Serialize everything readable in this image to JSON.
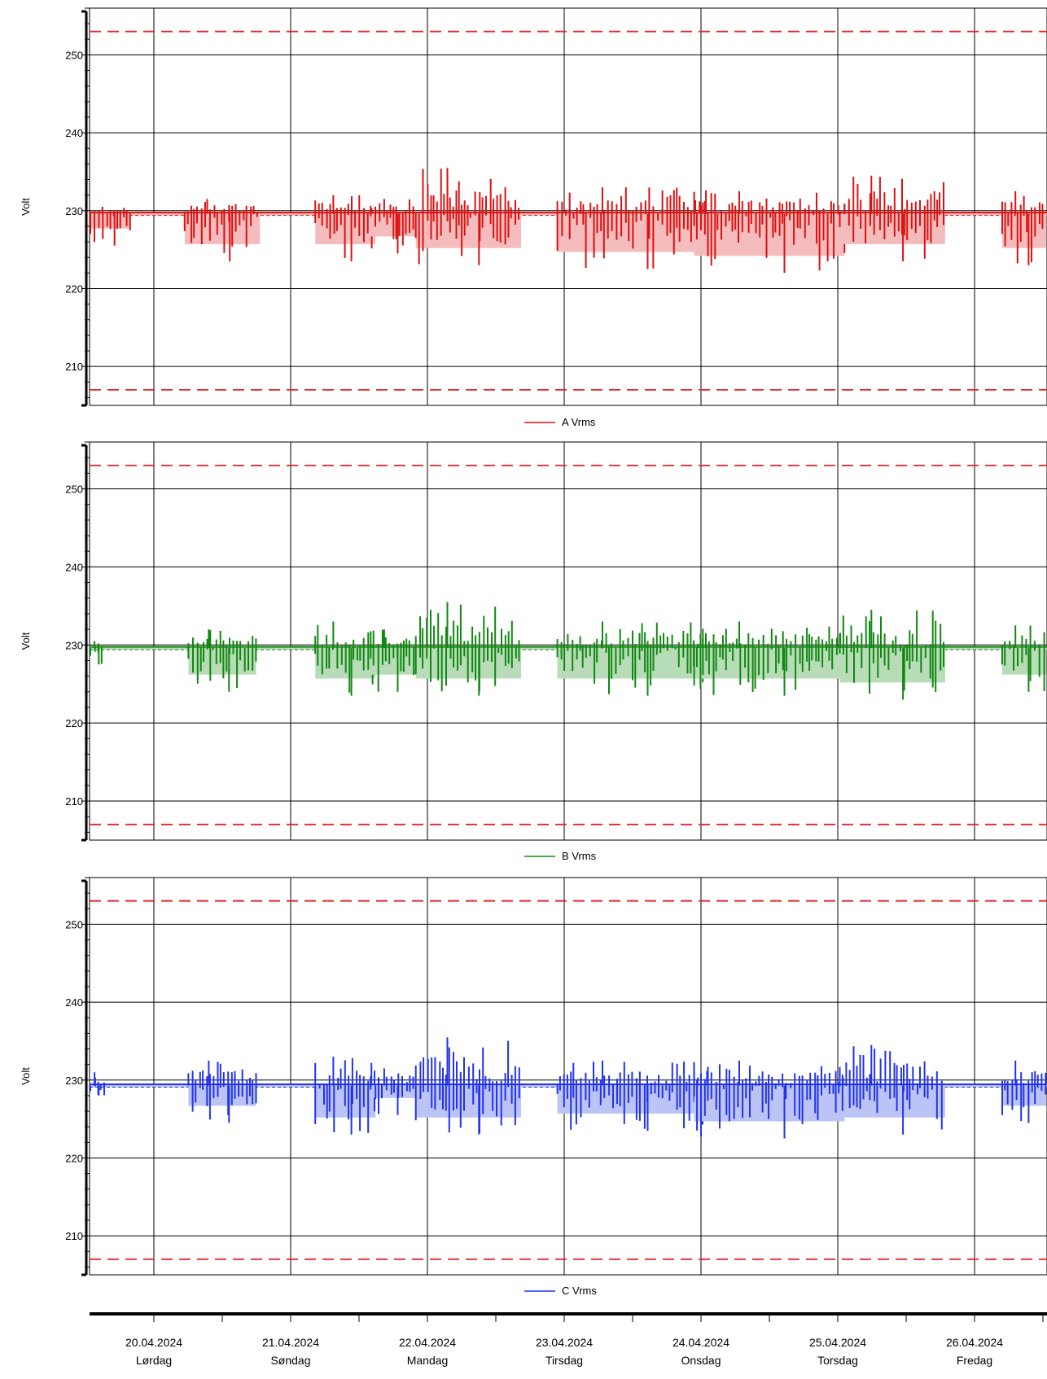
{
  "chart_data": [
    {
      "type": "line",
      "title": "",
      "xlabel": "",
      "ylabel": "Volt",
      "ylim": [
        205,
        256
      ],
      "yticks": [
        210,
        220,
        230,
        240,
        250
      ],
      "grid": true,
      "legend_position": "bottom-center",
      "limits": {
        "upper": 253,
        "lower": 207,
        "color": "#e8222a",
        "style": "dashed"
      },
      "x_days": [
        "20.04.2024",
        "21.04.2024",
        "22.04.2024",
        "23.04.2024",
        "24.04.2024",
        "25.04.2024",
        "26.04.2024"
      ],
      "series": [
        {
          "name": "A Vrms",
          "color": "#dd1111",
          "fill": "#f4bcbc",
          "nominal": 229.6,
          "bursts": [
            {
              "x": 19.5,
              "w": 1.2,
              "max": 230.5,
              "min": 225.5
            },
            {
              "x": 20.5,
              "w": 1.0,
              "max": 231.5,
              "min": 223.5
            },
            {
              "x": 21.4,
              "w": 0.8,
              "max": 232.0,
              "min": 223.5
            },
            {
              "x": 21.75,
              "w": 0.6,
              "max": 231.5,
              "min": 224.5
            },
            {
              "x": 22.3,
              "w": 1.4,
              "max": 235.5,
              "min": 223.0
            },
            {
              "x": 23.5,
              "w": 2.0,
              "max": 233.0,
              "min": 222.5
            },
            {
              "x": 24.5,
              "w": 2.0,
              "max": 232.5,
              "min": 222.0
            },
            {
              "x": 25.4,
              "w": 1.4,
              "max": 234.5,
              "min": 223.5
            },
            {
              "x": 26.45,
              "w": 0.9,
              "max": 232.5,
              "min": 223.0
            }
          ]
        },
        {
          "name": "B Vrms",
          "color": "#118811",
          "fill": "#b8dcb8",
          "nominal": 229.6,
          "bursts": [
            {
              "x": 19.5,
              "w": 0.5,
              "max": 230.5,
              "min": 227.5
            },
            {
              "x": 20.5,
              "w": 0.9,
              "max": 232.0,
              "min": 224.0
            },
            {
              "x": 21.4,
              "w": 0.8,
              "max": 233.0,
              "min": 223.5
            },
            {
              "x": 21.75,
              "w": 0.6,
              "max": 232.0,
              "min": 224.0
            },
            {
              "x": 22.3,
              "w": 1.4,
              "max": 235.5,
              "min": 223.5
            },
            {
              "x": 23.5,
              "w": 2.0,
              "max": 233.0,
              "min": 223.5
            },
            {
              "x": 24.5,
              "w": 2.0,
              "max": 233.0,
              "min": 223.5
            },
            {
              "x": 25.4,
              "w": 1.4,
              "max": 234.5,
              "min": 223.0
            },
            {
              "x": 26.45,
              "w": 0.9,
              "max": 232.5,
              "min": 224.0
            }
          ]
        },
        {
          "name": "C Vrms",
          "color": "#2233ee",
          "fill": "#bbc4f4",
          "nominal": 229.3,
          "bursts": [
            {
              "x": 19.5,
              "w": 0.5,
              "max": 231.0,
              "min": 228.0
            },
            {
              "x": 20.5,
              "w": 0.9,
              "max": 232.5,
              "min": 224.5
            },
            {
              "x": 21.4,
              "w": 0.8,
              "max": 233.0,
              "min": 223.0
            },
            {
              "x": 21.75,
              "w": 0.6,
              "max": 231.5,
              "min": 225.5
            },
            {
              "x": 22.3,
              "w": 1.4,
              "max": 235.5,
              "min": 223.0
            },
            {
              "x": 23.5,
              "w": 2.0,
              "max": 232.5,
              "min": 223.5
            },
            {
              "x": 24.5,
              "w": 2.0,
              "max": 232.5,
              "min": 222.5
            },
            {
              "x": 25.4,
              "w": 1.4,
              "max": 234.5,
              "min": 223.0
            },
            {
              "x": 26.45,
              "w": 0.9,
              "max": 232.5,
              "min": 224.5
            }
          ]
        }
      ]
    }
  ],
  "x_axis": {
    "dates": [
      "20.04.2024",
      "21.04.2024",
      "22.04.2024",
      "23.04.2024",
      "24.04.2024",
      "25.04.2024",
      "26.04.2024"
    ],
    "weekdays": [
      "Lørdag",
      "Søndag",
      "Mandag",
      "Tirsdag",
      "Onsdag",
      "Torsdag",
      "Fredag"
    ]
  }
}
